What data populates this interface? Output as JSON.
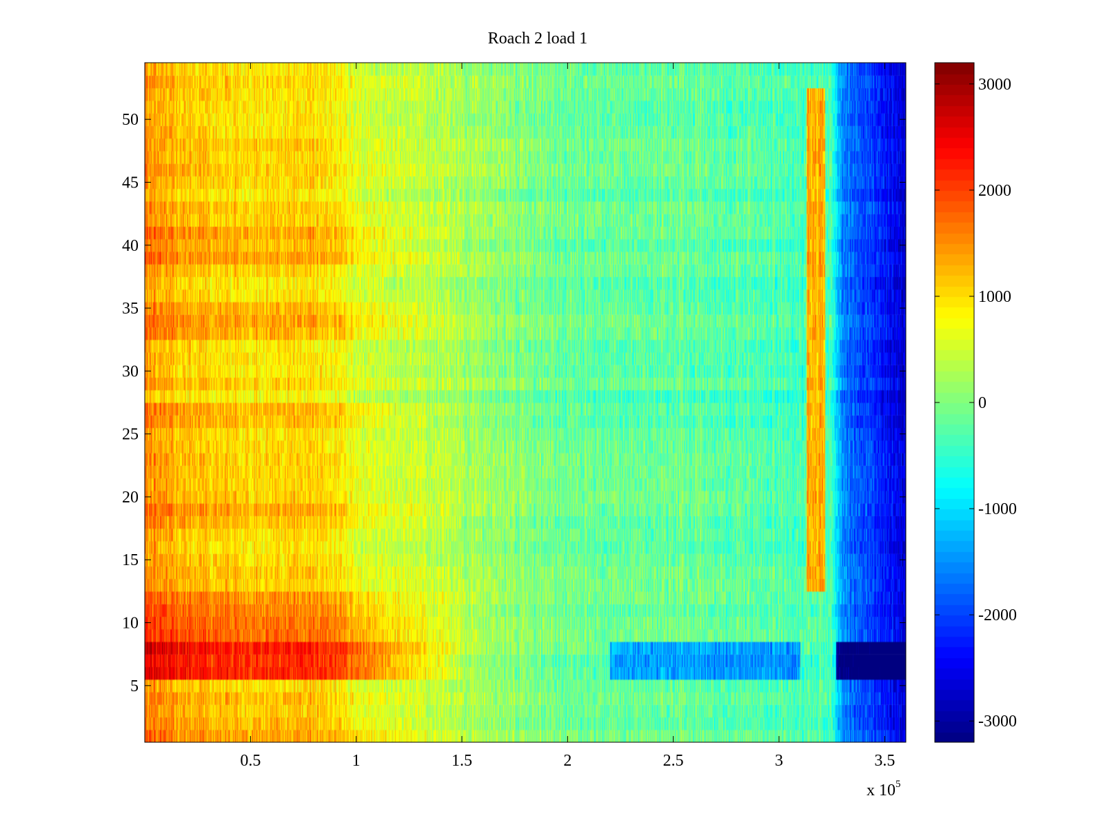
{
  "chart_data": {
    "type": "heatmap",
    "title": "Roach 2 load 1",
    "xlabel": "",
    "ylabel": "",
    "x_multiplier_text": "x 10",
    "x_multiplier_exponent": "5",
    "xlim": [
      0,
      3.6
    ],
    "ylim": [
      0.5,
      54.5
    ],
    "xticks": [
      0.5,
      1,
      1.5,
      2,
      2.5,
      3,
      3.5
    ],
    "xtick_labels": [
      "0.5",
      "1",
      "1.5",
      "2",
      "2.5",
      "3",
      "3.5"
    ],
    "yticks": [
      5,
      10,
      15,
      20,
      25,
      30,
      35,
      40,
      45,
      50
    ],
    "ytick_labels": [
      "5",
      "10",
      "15",
      "20",
      "25",
      "30",
      "35",
      "40",
      "45",
      "50"
    ],
    "colorbar": {
      "colormap": "jet",
      "clim": [
        -3200,
        3200
      ],
      "ticks": [
        -3000,
        -2000,
        -1000,
        0,
        1000,
        2000,
        3000
      ],
      "tick_labels": [
        "-3000",
        "-2000",
        "-1000",
        "0",
        "1000",
        "2000",
        "3000"
      ]
    },
    "rows": 54,
    "x_profile": {
      "x": [
        0,
        0.1,
        0.3,
        0.5,
        0.7,
        0.9,
        0.95,
        1.1,
        1.5,
        1.8,
        2.0,
        2.3,
        2.5,
        2.7,
        3.0,
        3.15,
        3.25,
        3.3,
        3.5,
        3.6
      ],
      "value": [
        1500,
        1250,
        1050,
        1000,
        1000,
        950,
        700,
        500,
        250,
        0,
        -150,
        -200,
        -150,
        -250,
        -300,
        -350,
        -400,
        -1600,
        -2300,
        -2600
      ]
    },
    "row_offsets": [
      {
        "rows": [
          1,
          2
        ],
        "offset": 250
      },
      {
        "rows": [
          3,
          4
        ],
        "offset": 120
      },
      {
        "rows": [
          6,
          7,
          8
        ],
        "offset": 1200
      },
      {
        "rows": [
          9,
          10,
          11
        ],
        "offset": 600
      },
      {
        "rows": [
          12
        ],
        "offset": 350
      },
      {
        "rows": [
          18,
          19
        ],
        "offset": 250
      },
      {
        "rows": [
          26,
          27
        ],
        "offset": 300
      },
      {
        "rows": [
          28
        ],
        "offset": -150
      },
      {
        "rows": [
          33,
          34,
          35
        ],
        "offset": 250
      },
      {
        "rows": [
          39,
          40,
          41
        ],
        "offset": 300
      }
    ],
    "features": [
      {
        "name": "warm stripe",
        "x_range": [
          3.13,
          3.22
        ],
        "row_range": [
          13,
          52
        ],
        "value": 1700
      },
      {
        "name": "cold band",
        "x_range": [
          2.2,
          3.1
        ],
        "row_range": [
          6,
          8
        ],
        "value": -1500
      },
      {
        "name": "cold block",
        "x_range": [
          3.27,
          3.6
        ],
        "row_range": [
          6,
          8
        ],
        "value": -3000
      }
    ]
  }
}
